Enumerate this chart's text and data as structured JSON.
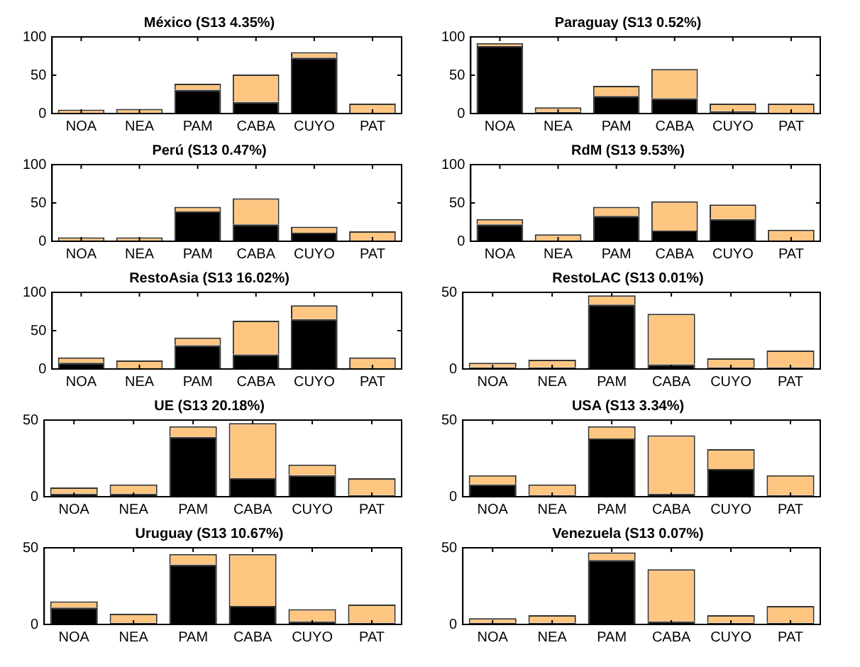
{
  "chart_data": [
    {
      "type": "bar",
      "title": "México (S13 4.35%)",
      "categories": [
        "NOA",
        "NEA",
        "PAM",
        "CABA",
        "CUYO",
        "PAT"
      ],
      "stacked": true,
      "legend": false,
      "grid": false,
      "ylim": [
        0,
        100
      ],
      "yticks": [
        0,
        50,
        100
      ],
      "series": [
        {
          "color": "#000000",
          "values": [
            1,
            1,
            31,
            15,
            73,
            1
          ]
        },
        {
          "color": "#ffc682",
          "values": [
            4,
            5,
            8,
            36,
            7,
            12
          ]
        }
      ]
    },
    {
      "type": "bar",
      "title": "Paraguay (S13 0.52%)",
      "categories": [
        "NOA",
        "NEA",
        "PAM",
        "CABA",
        "CUYO",
        "PAT"
      ],
      "stacked": true,
      "legend": false,
      "grid": false,
      "ylim": [
        0,
        100
      ],
      "yticks": [
        0,
        50,
        100
      ],
      "series": [
        {
          "color": "#000000",
          "values": [
            88,
            2,
            23,
            20,
            3,
            1
          ]
        },
        {
          "color": "#ffc682",
          "values": [
            4,
            6,
            13,
            38,
            10,
            12
          ]
        }
      ]
    },
    {
      "type": "bar",
      "title": "Perú (S13 0.47%)",
      "categories": [
        "NOA",
        "NEA",
        "PAM",
        "CABA",
        "CUYO",
        "PAT"
      ],
      "stacked": true,
      "legend": false,
      "grid": false,
      "ylim": [
        0,
        100
      ],
      "yticks": [
        0,
        50,
        100
      ],
      "series": [
        {
          "color": "#000000",
          "values": [
            1,
            1,
            39,
            22,
            11,
            1
          ]
        },
        {
          "color": "#ffc682",
          "values": [
            4,
            4,
            6,
            34,
            8,
            12
          ]
        }
      ]
    },
    {
      "type": "bar",
      "title": "RdM (S13 9.53%)",
      "categories": [
        "NOA",
        "NEA",
        "PAM",
        "CABA",
        "CUYO",
        "PAT"
      ],
      "stacked": true,
      "legend": false,
      "grid": false,
      "ylim": [
        0,
        100
      ],
      "yticks": [
        0,
        50,
        100
      ],
      "series": [
        {
          "color": "#000000",
          "values": [
            22,
            1,
            33,
            14,
            29,
            1
          ]
        },
        {
          "color": "#ffc682",
          "values": [
            7,
            8,
            12,
            38,
            19,
            14
          ]
        }
      ]
    },
    {
      "type": "bar",
      "title": "RestoAsia (S13 16.02%)",
      "categories": [
        "NOA",
        "NEA",
        "PAM",
        "CABA",
        "CUYO",
        "PAT"
      ],
      "stacked": true,
      "legend": false,
      "grid": false,
      "ylim": [
        0,
        100
      ],
      "yticks": [
        0,
        50,
        100
      ],
      "series": [
        {
          "color": "#000000",
          "values": [
            8,
            1,
            31,
            19,
            65,
            1
          ]
        },
        {
          "color": "#ffc682",
          "values": [
            7,
            10,
            10,
            44,
            18,
            14
          ]
        }
      ]
    },
    {
      "type": "bar",
      "title": "RestoLAC (S13 0.01%)",
      "categories": [
        "NOA",
        "NEA",
        "PAM",
        "CABA",
        "CUYO",
        "PAT"
      ],
      "stacked": true,
      "legend": false,
      "grid": false,
      "ylim": [
        0,
        50
      ],
      "yticks": [
        0,
        50
      ],
      "series": [
        {
          "color": "#000000",
          "values": [
            1,
            1,
            42,
            3,
            1,
            1
          ]
        },
        {
          "color": "#ffc682",
          "values": [
            3,
            5,
            6,
            33,
            6,
            11
          ]
        }
      ]
    },
    {
      "type": "bar",
      "title": "UE (S13 20.18%)",
      "categories": [
        "NOA",
        "NEA",
        "PAM",
        "CABA",
        "CUYO",
        "PAT"
      ],
      "stacked": true,
      "legend": false,
      "grid": false,
      "ylim": [
        0,
        50
      ],
      "yticks": [
        0,
        50
      ],
      "series": [
        {
          "color": "#000000",
          "values": [
            2,
            2,
            39,
            12,
            14,
            1
          ]
        },
        {
          "color": "#ffc682",
          "values": [
            4,
            6,
            7,
            36,
            7,
            11
          ]
        }
      ]
    },
    {
      "type": "bar",
      "title": "USA (S13 3.34%)",
      "categories": [
        "NOA",
        "NEA",
        "PAM",
        "CABA",
        "CUYO",
        "PAT"
      ],
      "stacked": true,
      "legend": false,
      "grid": false,
      "ylim": [
        0,
        50
      ],
      "yticks": [
        0,
        50
      ],
      "series": [
        {
          "color": "#000000",
          "values": [
            8,
            1,
            38,
            2,
            18,
            1
          ]
        },
        {
          "color": "#ffc682",
          "values": [
            6,
            7,
            8,
            38,
            13,
            13
          ]
        }
      ]
    },
    {
      "type": "bar",
      "title": "Uruguay (S13 10.67%)",
      "categories": [
        "NOA",
        "NEA",
        "PAM",
        "CABA",
        "CUYO",
        "PAT"
      ],
      "stacked": true,
      "legend": false,
      "grid": false,
      "ylim": [
        0,
        50
      ],
      "yticks": [
        0,
        50
      ],
      "series": [
        {
          "color": "#000000",
          "values": [
            11,
            1,
            39,
            12,
            2,
            1
          ]
        },
        {
          "color": "#ffc682",
          "values": [
            4,
            6,
            7,
            34,
            8,
            12
          ]
        }
      ]
    },
    {
      "type": "bar",
      "title": "Venezuela (S13 0.07%)",
      "categories": [
        "NOA",
        "NEA",
        "PAM",
        "CABA",
        "CUYO",
        "PAT"
      ],
      "stacked": true,
      "legend": false,
      "grid": false,
      "ylim": [
        0,
        50
      ],
      "yticks": [
        0,
        50
      ],
      "series": [
        {
          "color": "#000000",
          "values": [
            1,
            1,
            42,
            2,
            1,
            1
          ]
        },
        {
          "color": "#ffc682",
          "values": [
            3,
            5,
            5,
            34,
            5,
            11
          ]
        }
      ]
    }
  ]
}
